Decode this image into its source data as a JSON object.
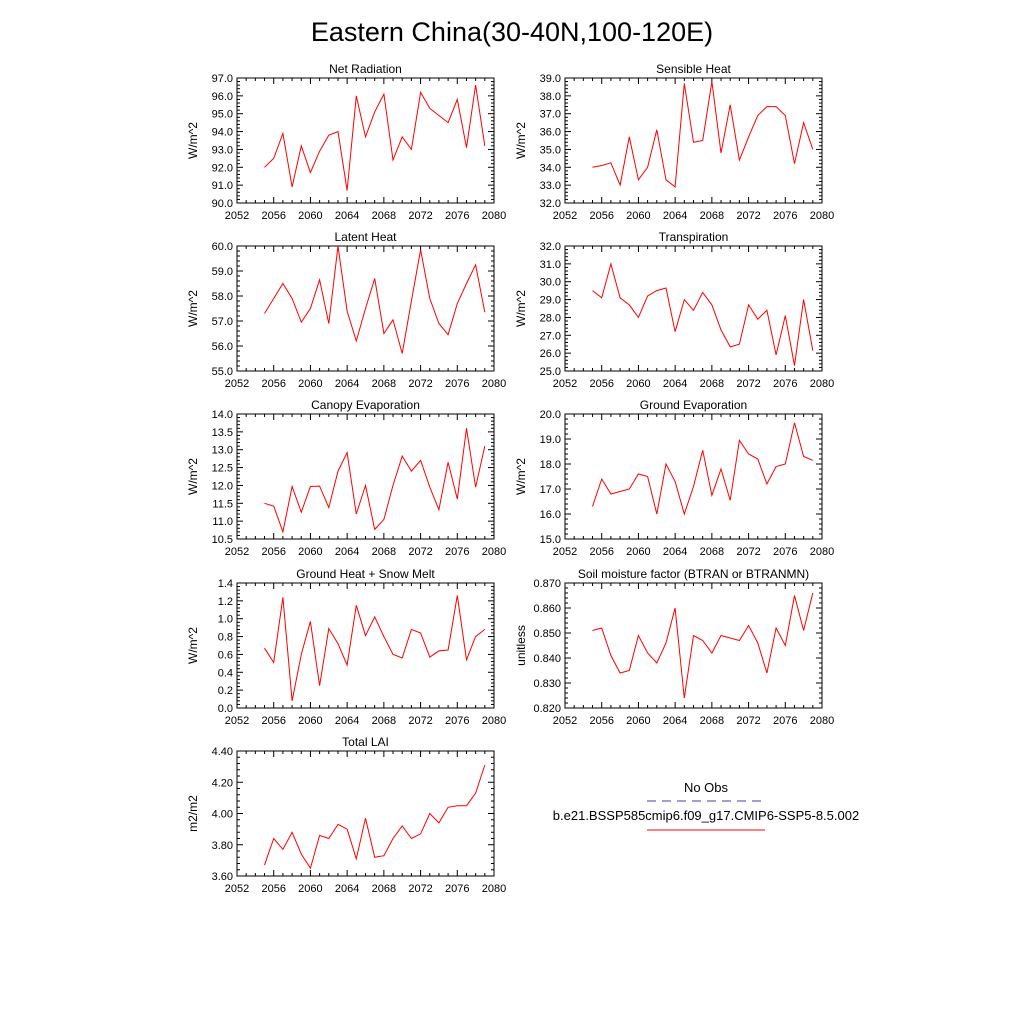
{
  "title": "Eastern China(30-40N,100-120E)",
  "legend": {
    "obs_label": "No Obs",
    "obs_color": "#4040a0",
    "model_label": "b.e21.BSSP585cmip6.f09_g17.CMIP6-SSP5-8.5.002",
    "model_color": "#ff0000"
  },
  "chart_data": [
    {
      "type": "line",
      "title": "Net Radiation",
      "ylabel": "W/m^2",
      "xlim": [
        2052,
        2080
      ],
      "xticks": [
        2052,
        2056,
        2060,
        2064,
        2068,
        2072,
        2076,
        2080
      ],
      "ylim": [
        90.0,
        97.0
      ],
      "yticks": [
        "90.0",
        "91.0",
        "92.0",
        "93.0",
        "94.0",
        "95.0",
        "96.0",
        "97.0"
      ],
      "x": [
        2055,
        2056,
        2057,
        2058,
        2059,
        2060,
        2061,
        2062,
        2063,
        2064,
        2065,
        2066,
        2067,
        2068,
        2069,
        2070,
        2071,
        2072,
        2073,
        2074,
        2075,
        2076,
        2077,
        2078,
        2079
      ],
      "series": [
        {
          "color": "#ff0000",
          "values": [
            92.0,
            92.5,
            93.9,
            90.9,
            93.2,
            91.7,
            92.9,
            93.8,
            94.0,
            90.7,
            96.0,
            93.7,
            95.1,
            96.1,
            92.4,
            93.7,
            93.0,
            96.2,
            95.3,
            94.9,
            94.5,
            95.8,
            93.1,
            96.6,
            93.2
          ]
        }
      ]
    },
    {
      "type": "line",
      "title": "Sensible Heat",
      "ylabel": "W/m^2",
      "xlim": [
        2052,
        2080
      ],
      "xticks": [
        2052,
        2056,
        2060,
        2064,
        2068,
        2072,
        2076,
        2080
      ],
      "ylim": [
        32.0,
        39.0
      ],
      "yticks": [
        "32.0",
        "33.0",
        "34.0",
        "35.0",
        "36.0",
        "37.0",
        "38.0",
        "39.0"
      ],
      "x": [
        2055,
        2056,
        2057,
        2058,
        2059,
        2060,
        2061,
        2062,
        2063,
        2064,
        2065,
        2066,
        2067,
        2068,
        2069,
        2070,
        2071,
        2072,
        2073,
        2074,
        2075,
        2076,
        2077,
        2078,
        2079
      ],
      "series": [
        {
          "color": "#ff0000",
          "values": [
            34.0,
            34.1,
            34.25,
            33.0,
            35.7,
            33.3,
            34.0,
            36.1,
            33.3,
            32.9,
            38.7,
            35.4,
            35.5,
            38.8,
            34.8,
            37.5,
            34.4,
            35.7,
            36.9,
            37.4,
            37.4,
            36.9,
            34.2,
            36.5,
            35.0
          ]
        }
      ]
    },
    {
      "type": "line",
      "title": "Latent Heat",
      "ylabel": "W/m^2",
      "xlim": [
        2052,
        2080
      ],
      "xticks": [
        2052,
        2056,
        2060,
        2064,
        2068,
        2072,
        2076,
        2080
      ],
      "ylim": [
        55.0,
        60.0
      ],
      "yticks": [
        "55.0",
        "56.0",
        "57.0",
        "58.0",
        "59.0",
        "60.0"
      ],
      "x": [
        2055,
        2056,
        2057,
        2058,
        2059,
        2060,
        2061,
        2062,
        2063,
        2064,
        2065,
        2066,
        2067,
        2068,
        2069,
        2070,
        2071,
        2072,
        2073,
        2074,
        2075,
        2076,
        2077,
        2078,
        2079
      ],
      "series": [
        {
          "color": "#ff0000",
          "values": [
            57.3,
            57.9,
            58.5,
            57.9,
            56.95,
            57.5,
            58.65,
            56.9,
            60.0,
            57.4,
            56.2,
            57.5,
            58.7,
            56.5,
            57.05,
            55.7,
            57.8,
            59.85,
            57.9,
            56.9,
            56.45,
            57.7,
            58.5,
            59.25,
            57.35
          ]
        }
      ]
    },
    {
      "type": "line",
      "title": "Transpiration",
      "ylabel": "W/m^2",
      "xlim": [
        2052,
        2080
      ],
      "xticks": [
        2052,
        2056,
        2060,
        2064,
        2068,
        2072,
        2076,
        2080
      ],
      "ylim": [
        25.0,
        32.0
      ],
      "yticks": [
        "25.0",
        "26.0",
        "27.0",
        "28.0",
        "29.0",
        "30.0",
        "31.0",
        "32.0"
      ],
      "x": [
        2055,
        2056,
        2057,
        2058,
        2059,
        2060,
        2061,
        2062,
        2063,
        2064,
        2065,
        2066,
        2067,
        2068,
        2069,
        2070,
        2071,
        2072,
        2073,
        2074,
        2075,
        2076,
        2077,
        2078,
        2079
      ],
      "series": [
        {
          "color": "#ff0000",
          "values": [
            29.5,
            29.1,
            31.0,
            29.1,
            28.7,
            28.0,
            29.2,
            29.5,
            29.65,
            27.2,
            29.0,
            28.4,
            29.4,
            28.7,
            27.3,
            26.35,
            26.5,
            28.7,
            27.9,
            28.4,
            25.9,
            28.1,
            25.3,
            29.0,
            26.15
          ]
        }
      ]
    },
    {
      "type": "line",
      "title": "Canopy Evaporation",
      "ylabel": "W/m^2",
      "xlim": [
        2052,
        2080
      ],
      "xticks": [
        2052,
        2056,
        2060,
        2064,
        2068,
        2072,
        2076,
        2080
      ],
      "ylim": [
        10.5,
        14.0
      ],
      "yticks": [
        "10.5",
        "11.0",
        "11.5",
        "12.0",
        "12.5",
        "13.0",
        "13.5",
        "14.0"
      ],
      "x": [
        2055,
        2056,
        2057,
        2058,
        2059,
        2060,
        2061,
        2062,
        2063,
        2064,
        2065,
        2066,
        2067,
        2068,
        2069,
        2070,
        2071,
        2072,
        2073,
        2074,
        2075,
        2076,
        2077,
        2078,
        2079
      ],
      "series": [
        {
          "color": "#ff0000",
          "values": [
            11.5,
            11.42,
            10.7,
            11.97,
            11.25,
            11.97,
            11.98,
            11.38,
            12.4,
            12.92,
            11.2,
            12.0,
            10.77,
            11.05,
            12.0,
            12.82,
            12.4,
            12.7,
            11.95,
            11.32,
            12.65,
            11.62,
            13.6,
            11.95,
            13.1
          ]
        }
      ]
    },
    {
      "type": "line",
      "title": "Ground Evaporation",
      "ylabel": "W/m^2",
      "xlim": [
        2052,
        2080
      ],
      "xticks": [
        2052,
        2056,
        2060,
        2064,
        2068,
        2072,
        2076,
        2080
      ],
      "ylim": [
        15.0,
        20.0
      ],
      "yticks": [
        "15.0",
        "16.0",
        "17.0",
        "18.0",
        "19.0",
        "20.0"
      ],
      "x": [
        2055,
        2056,
        2057,
        2058,
        2059,
        2060,
        2061,
        2062,
        2063,
        2064,
        2065,
        2066,
        2067,
        2068,
        2069,
        2070,
        2071,
        2072,
        2073,
        2074,
        2075,
        2076,
        2077,
        2078,
        2079
      ],
      "series": [
        {
          "color": "#ff0000",
          "values": [
            16.3,
            17.4,
            16.8,
            16.9,
            17.0,
            17.6,
            17.5,
            16.0,
            18.0,
            17.3,
            16.0,
            17.1,
            18.55,
            16.75,
            17.8,
            16.55,
            18.95,
            18.4,
            18.2,
            17.2,
            17.9,
            18.0,
            19.65,
            18.3,
            18.15
          ]
        }
      ]
    },
    {
      "type": "line",
      "title": "Ground Heat + Snow Melt",
      "ylabel": "W/m^2",
      "xlim": [
        2052,
        2080
      ],
      "xticks": [
        2052,
        2056,
        2060,
        2064,
        2068,
        2072,
        2076,
        2080
      ],
      "ylim": [
        0.0,
        1.4
      ],
      "yticks": [
        "0.0",
        "0.2",
        "0.4",
        "0.6",
        "0.8",
        "1.0",
        "1.2",
        "1.4"
      ],
      "x": [
        2055,
        2056,
        2057,
        2058,
        2059,
        2060,
        2061,
        2062,
        2063,
        2064,
        2065,
        2066,
        2067,
        2068,
        2069,
        2070,
        2071,
        2072,
        2073,
        2074,
        2075,
        2076,
        2077,
        2078,
        2079
      ],
      "series": [
        {
          "color": "#ff0000",
          "values": [
            0.67,
            0.51,
            1.24,
            0.08,
            0.6,
            0.97,
            0.25,
            0.89,
            0.72,
            0.48,
            1.15,
            0.81,
            1.02,
            0.8,
            0.6,
            0.56,
            0.88,
            0.84,
            0.57,
            0.64,
            0.65,
            1.26,
            0.54,
            0.8,
            0.88
          ]
        }
      ]
    },
    {
      "type": "line",
      "title": "Soil moisture factor (BTRAN or BTRANMN)",
      "ylabel": "unitless",
      "xlim": [
        2052,
        2080
      ],
      "xticks": [
        2052,
        2056,
        2060,
        2064,
        2068,
        2072,
        2076,
        2080
      ],
      "ylim": [
        0.82,
        0.87
      ],
      "yticks": [
        "0.820",
        "0.830",
        "0.840",
        "0.850",
        "0.860",
        "0.870"
      ],
      "x": [
        2055,
        2056,
        2057,
        2058,
        2059,
        2060,
        2061,
        2062,
        2063,
        2064,
        2065,
        2066,
        2067,
        2068,
        2069,
        2070,
        2071,
        2072,
        2073,
        2074,
        2075,
        2076,
        2077,
        2078,
        2079
      ],
      "series": [
        {
          "color": "#ff0000",
          "values": [
            0.851,
            0.852,
            0.841,
            0.834,
            0.835,
            0.849,
            0.842,
            0.838,
            0.846,
            0.86,
            0.824,
            0.849,
            0.847,
            0.842,
            0.849,
            0.848,
            0.847,
            0.853,
            0.846,
            0.834,
            0.852,
            0.845,
            0.865,
            0.851,
            0.866
          ]
        }
      ]
    },
    {
      "type": "line",
      "title": "Total LAI",
      "ylabel": "m2/m2",
      "xlim": [
        2052,
        2080
      ],
      "xticks": [
        2052,
        2056,
        2060,
        2064,
        2068,
        2072,
        2076,
        2080
      ],
      "ylim": [
        3.6,
        4.4
      ],
      "yticks": [
        "3.60",
        "3.80",
        "4.00",
        "4.20",
        "4.40"
      ],
      "x": [
        2055,
        2056,
        2057,
        2058,
        2059,
        2060,
        2061,
        2062,
        2063,
        2064,
        2065,
        2066,
        2067,
        2068,
        2069,
        2070,
        2071,
        2072,
        2073,
        2074,
        2075,
        2076,
        2077,
        2078,
        2079
      ],
      "series": [
        {
          "color": "#ff0000",
          "values": [
            3.67,
            3.84,
            3.77,
            3.88,
            3.74,
            3.65,
            3.86,
            3.84,
            3.93,
            3.9,
            3.71,
            3.97,
            3.72,
            3.73,
            3.84,
            3.92,
            3.84,
            3.87,
            4.0,
            3.94,
            4.04,
            4.05,
            4.05,
            4.13,
            4.31
          ]
        }
      ]
    }
  ]
}
